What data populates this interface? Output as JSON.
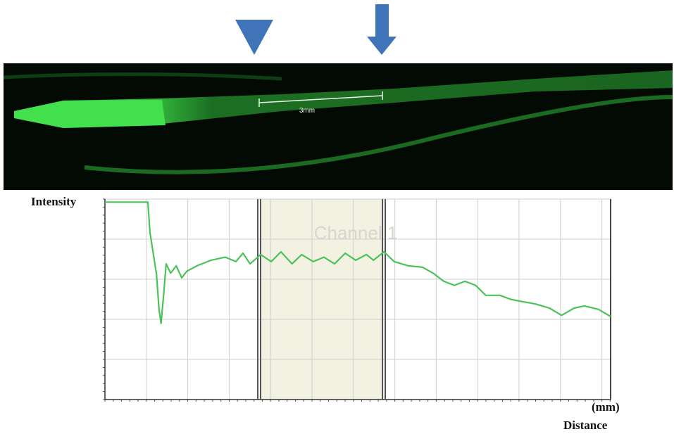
{
  "image": {
    "scale_label": "3mm"
  },
  "chart_data": {
    "type": "line",
    "y_label": "Intensity",
    "x_label": "Distance",
    "x_unit": "(mm)",
    "watermark": "Channel 1",
    "color": "#4cc25a",
    "xlim": [
      0,
      100
    ],
    "ylim": [
      0,
      100
    ],
    "x": [
      0,
      8.5,
      8.9,
      10.2,
      10.7,
      11.1,
      11.6,
      12.1,
      13,
      14.1,
      15.2,
      16.2,
      18.2,
      21,
      23.8,
      25.9,
      27.3,
      28.7,
      30.8,
      32.9,
      34.8,
      37,
      38.9,
      41.2,
      43.3,
      45.4,
      47.5,
      49.6,
      51.7,
      53.1,
      55.2,
      57.2,
      60,
      62.8,
      64.9,
      67,
      69.1,
      71.2,
      73.3,
      75.3,
      78.1,
      80.2,
      82.3,
      85.1,
      87.9,
      90.3,
      92.8,
      94.8,
      97.6,
      100
    ],
    "values": [
      98.5,
      98.5,
      83.5,
      62.5,
      45,
      38,
      52,
      67.7,
      63,
      66.7,
      60.7,
      64,
      66.7,
      69.5,
      71,
      68.8,
      73,
      67.7,
      72.3,
      68.8,
      73.7,
      67.7,
      72.3,
      68.8,
      71,
      67.7,
      73,
      69.5,
      72.3,
      69.5,
      73.7,
      68.8,
      66.7,
      66,
      63,
      59,
      57,
      59,
      57,
      52,
      52,
      50,
      49,
      47.7,
      45.6,
      42,
      45.6,
      46.7,
      45,
      41.4
    ]
  }
}
